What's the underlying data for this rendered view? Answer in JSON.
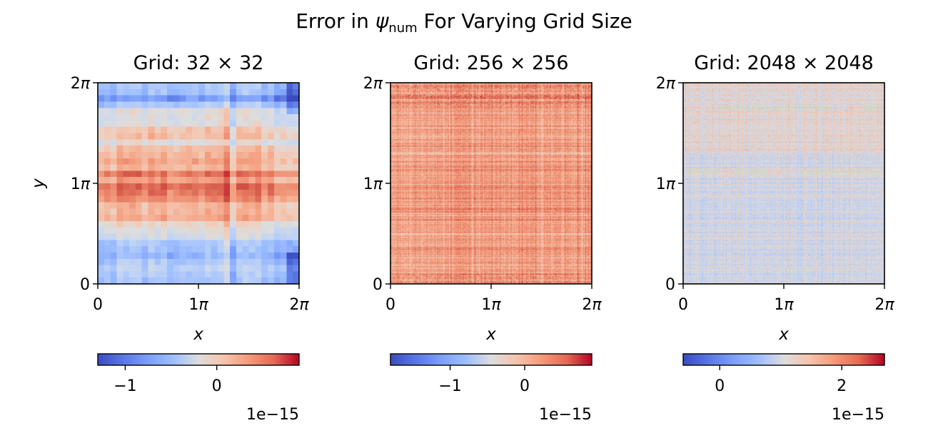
{
  "chart_data": {
    "type": "heatmap",
    "title": {
      "prefix": "Error in ",
      "symbol": "ψ",
      "subscript": "num",
      "suffix": " For Varying Grid Size"
    },
    "colormap": "coolwarm",
    "colors": {
      "low": "#3b4cc0",
      "mid": "#dddddd",
      "high": "#b40426"
    },
    "panels": [
      {
        "title": "Grid: 32 × 32",
        "grid_n": 32,
        "xlabel": "x",
        "ylabel": "y",
        "x_ticks": [
          "0",
          "1π",
          "2π"
        ],
        "y_ticks": [
          "0",
          "1π",
          "2π"
        ],
        "x_range": [
          "0",
          "2π"
        ],
        "y_range": [
          "0",
          "2π"
        ],
        "colorbar": {
          "orientation": "horizontal",
          "vmin": -1.3e-15,
          "vmax": 9e-16,
          "ticks": [
            {
              "value": -1,
              "label": "−1"
            },
            {
              "value": 0,
              "label": "0"
            }
          ],
          "offset_text": "1e−15"
        }
      },
      {
        "title": "Grid: 256 × 256",
        "grid_n": 256,
        "xlabel": "x",
        "ylabel": "",
        "x_ticks": [
          "0",
          "1π",
          "2π"
        ],
        "y_ticks": [
          "0",
          "1π",
          "2π"
        ],
        "x_range": [
          "0",
          "2π"
        ],
        "y_range": [
          "0",
          "2π"
        ],
        "colorbar": {
          "orientation": "horizontal",
          "vmin": -1.8e-15,
          "vmax": 9e-16,
          "ticks": [
            {
              "value": -1,
              "label": "−1"
            },
            {
              "value": 0,
              "label": "0"
            }
          ],
          "offset_text": "1e−15"
        }
      },
      {
        "title": "Grid: 2048 × 2048",
        "grid_n": 2048,
        "xlabel": "x",
        "ylabel": "",
        "x_ticks": [
          "0",
          "1π",
          "2π"
        ],
        "y_ticks": [
          "0",
          "1π",
          "2π"
        ],
        "x_range": [
          "0",
          "2π"
        ],
        "y_range": [
          "0",
          "2π"
        ],
        "colorbar": {
          "orientation": "horizontal",
          "vmin": -6e-16,
          "vmax": 2.7e-15,
          "ticks": [
            {
              "value": 0,
              "label": "0"
            },
            {
              "value": 2,
              "label": "2"
            }
          ],
          "offset_text": "1e−15"
        }
      }
    ]
  }
}
